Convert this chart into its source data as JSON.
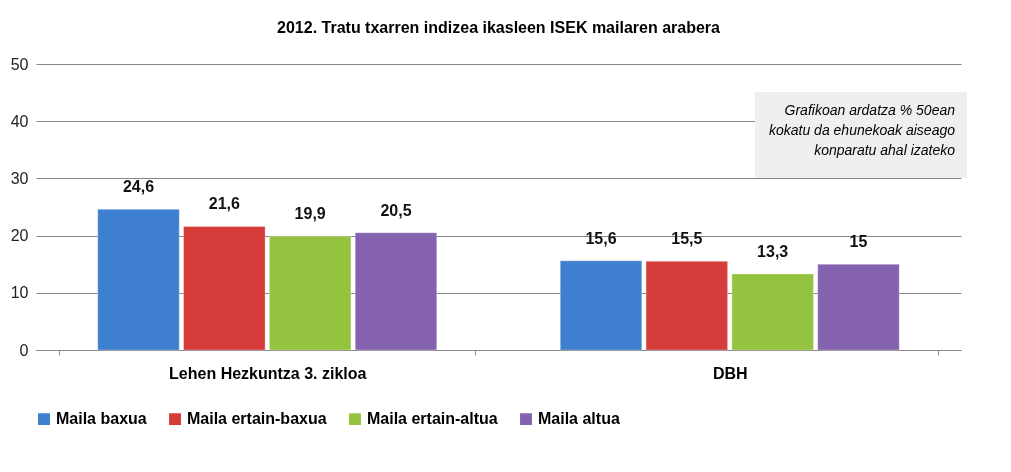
{
  "chart_data": {
    "type": "bar",
    "title": "2012. Tratu txarren indizea ikasleen ISEK mailaren arabera",
    "categories": [
      "Lehen Hezkuntza 3. zikloa",
      "DBH"
    ],
    "series": [
      {
        "name": "Maila baxua",
        "color": "#3f7fd0",
        "values": [
          24.6,
          15.6
        ],
        "value_labels": [
          "24,6",
          "15,6"
        ]
      },
      {
        "name": "Maila ertain-baxua",
        "color": "#d63c3a",
        "values": [
          21.6,
          15.5
        ],
        "value_labels": [
          "21,6",
          "15,5"
        ]
      },
      {
        "name": "Maila ertain-altua",
        "color": "#94c43f",
        "values": [
          19.9,
          13.3
        ],
        "value_labels": [
          "19,9",
          "13,3"
        ]
      },
      {
        "name": "Maila altua",
        "color": "#8462b0",
        "values": [
          20.5,
          15
        ],
        "value_labels": [
          "20,5",
          "15"
        ]
      }
    ],
    "ylim": [
      0,
      50
    ],
    "yticks": [
      0,
      10,
      20,
      30,
      40,
      50
    ],
    "grid": "y",
    "legend": "bottom",
    "annotations": [
      "Grafikoan ardatza % 50ean kokatu da ehunekoak  aiseago konparatu ahal izateko"
    ]
  }
}
